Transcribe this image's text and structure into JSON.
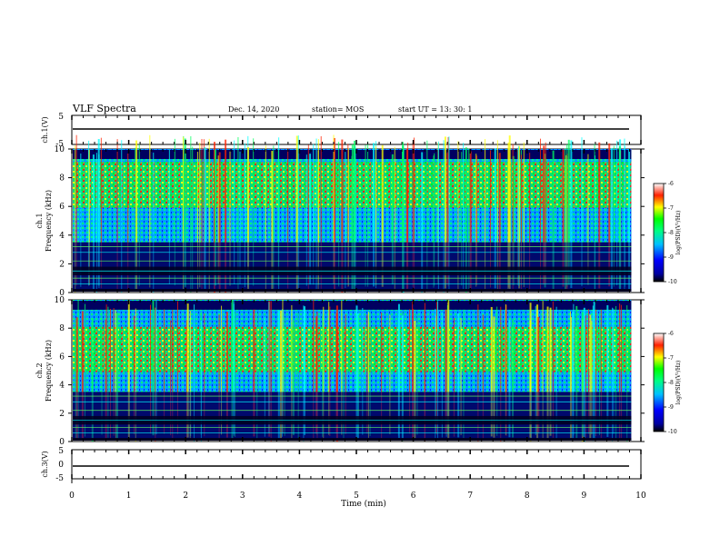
{
  "header": {
    "title": "VLF Spectra",
    "date": "Dec. 14, 2020",
    "station": "station= MOS",
    "start": "start  UT  =   13: 30: 1"
  },
  "chart_data": [
    {
      "type": "line",
      "panel": "ch1-waveform",
      "ylabel": "ch.1(V)",
      "ylim": [
        -5,
        5
      ],
      "yticks": [
        "5",
        "-5"
      ],
      "series": [
        {
          "values": [
            0,
            0
          ]
        }
      ]
    },
    {
      "type": "heatmap",
      "panel": "ch1-spectrogram",
      "ylabel": "ch.1\nFrequency (kHz)",
      "ylabel_line1": "ch.1",
      "ylabel_line2": "Frequency (kHz)",
      "ylim": [
        0,
        10
      ],
      "yticks": [
        "0",
        "2",
        "4",
        "6",
        "8",
        "10"
      ],
      "colorbar": {
        "label": "log(PSD)(V²/Hz)",
        "ticks": [
          "-6",
          "-7",
          "-8",
          "-9",
          "-10"
        ],
        "range": [
          -10,
          -6
        ]
      },
      "band_center_khz": 7.5
    },
    {
      "type": "heatmap",
      "panel": "ch2-spectrogram",
      "ylabel": "ch.2\nFrequency (kHz)",
      "ylabel_line1": "ch.2",
      "ylabel_line2": "Frequency (kHz)",
      "ylim": [
        0,
        10
      ],
      "yticks": [
        "0",
        "2",
        "4",
        "6",
        "8",
        "10"
      ],
      "colorbar": {
        "label": "log(PSD)(V²/Hz)",
        "ticks": [
          "-6",
          "-7",
          "-8",
          "-9",
          "-10"
        ],
        "range": [
          -10,
          -6
        ]
      },
      "band_center_khz": 6.5
    },
    {
      "type": "line",
      "panel": "ch3-waveform",
      "ylabel": "ch.3(V)",
      "ylim": [
        -5,
        5
      ],
      "yticks": [
        "5",
        "0",
        "-5"
      ],
      "series": [
        {
          "values": [
            -1,
            -1
          ]
        }
      ]
    }
  ],
  "xaxis": {
    "label": "Time (min)",
    "xlim": [
      0,
      10
    ],
    "ticks": [
      "0",
      "1",
      "2",
      "3",
      "4",
      "5",
      "6",
      "7",
      "8",
      "9",
      "10"
    ],
    "data_end": 9.83
  },
  "colors": {
    "colormap": [
      "#000040",
      "#0000ff",
      "#00ffff",
      "#00ff00",
      "#ffff00",
      "#ff0000",
      "#ffffff"
    ]
  }
}
